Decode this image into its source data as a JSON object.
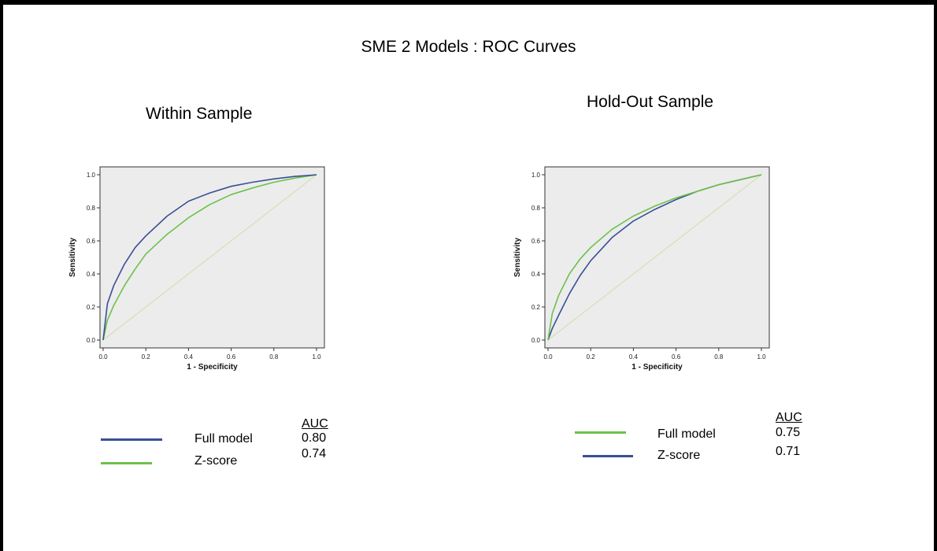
{
  "title": "SME 2  Models : ROC Curves",
  "colors": {
    "full_model_left": "#3a4f95",
    "z_score_left": "#6cc24a",
    "full_model_right": "#6cc24a",
    "z_score_right": "#3a4f95",
    "reference": "#d6d9a8",
    "plot_bg": "#ececec"
  },
  "chart_data": [
    {
      "type": "line",
      "panel_title": "Within Sample",
      "xlabel": "1 - Specificity",
      "ylabel": "Sensitivity",
      "xlim": [
        0,
        1
      ],
      "ylim": [
        0,
        1
      ],
      "xticks": [
        "0.0",
        "0.2",
        "0.4",
        "0.6",
        "0.8",
        "1.0"
      ],
      "yticks": [
        "0.0",
        "0.2",
        "0.4",
        "0.6",
        "0.8",
        "1.0"
      ],
      "grid": false,
      "x": [
        0,
        0.02,
        0.05,
        0.1,
        0.15,
        0.2,
        0.3,
        0.4,
        0.5,
        0.6,
        0.7,
        0.8,
        0.9,
        1.0
      ],
      "series": [
        {
          "name": "Full model",
          "values": [
            0,
            0.22,
            0.33,
            0.46,
            0.56,
            0.63,
            0.75,
            0.84,
            0.89,
            0.93,
            0.955,
            0.975,
            0.99,
            1.0
          ]
        },
        {
          "name": "Z-score",
          "values": [
            0,
            0.12,
            0.21,
            0.33,
            0.43,
            0.52,
            0.64,
            0.74,
            0.82,
            0.88,
            0.92,
            0.955,
            0.98,
            1.0
          ]
        },
        {
          "name": "",
          "values": [
            0,
            0.02,
            0.05,
            0.1,
            0.15,
            0.2,
            0.3,
            0.4,
            0.5,
            0.6,
            0.7,
            0.8,
            0.9,
            1.0
          ]
        }
      ],
      "legend": {
        "auc_header": "AUC",
        "entries": [
          {
            "label": "Full model",
            "auc": "0.80"
          },
          {
            "label": "Z-score",
            "auc": "0.74"
          }
        ]
      }
    },
    {
      "type": "line",
      "panel_title": "Hold-Out  Sample",
      "xlabel": "1 - Specificity",
      "ylabel": "Sensitivity",
      "xlim": [
        0,
        1
      ],
      "ylim": [
        0,
        1
      ],
      "xticks": [
        "0.0",
        "0.2",
        "0.4",
        "0.6",
        "0.8",
        "1.0"
      ],
      "yticks": [
        "0.0",
        "0.2",
        "0.4",
        "0.6",
        "0.8",
        "1.0"
      ],
      "grid": false,
      "x": [
        0,
        0.02,
        0.05,
        0.1,
        0.15,
        0.2,
        0.3,
        0.4,
        0.5,
        0.6,
        0.7,
        0.8,
        0.9,
        1.0
      ],
      "series": [
        {
          "name": "Full model",
          "values": [
            0,
            0.16,
            0.27,
            0.4,
            0.49,
            0.56,
            0.67,
            0.75,
            0.81,
            0.86,
            0.9,
            0.94,
            0.97,
            1.0
          ]
        },
        {
          "name": "Z-score",
          "values": [
            0,
            0.07,
            0.15,
            0.28,
            0.39,
            0.48,
            0.62,
            0.72,
            0.79,
            0.85,
            0.9,
            0.94,
            0.97,
            1.0
          ]
        },
        {
          "name": "",
          "values": [
            0,
            0.02,
            0.05,
            0.1,
            0.15,
            0.2,
            0.3,
            0.4,
            0.5,
            0.6,
            0.7,
            0.8,
            0.9,
            1.0
          ]
        }
      ],
      "legend": {
        "auc_header": "AUC",
        "entries": [
          {
            "label": "Full model",
            "auc": "0.75"
          },
          {
            "label": "Z-score",
            "auc": "0.71"
          }
        ]
      }
    }
  ]
}
